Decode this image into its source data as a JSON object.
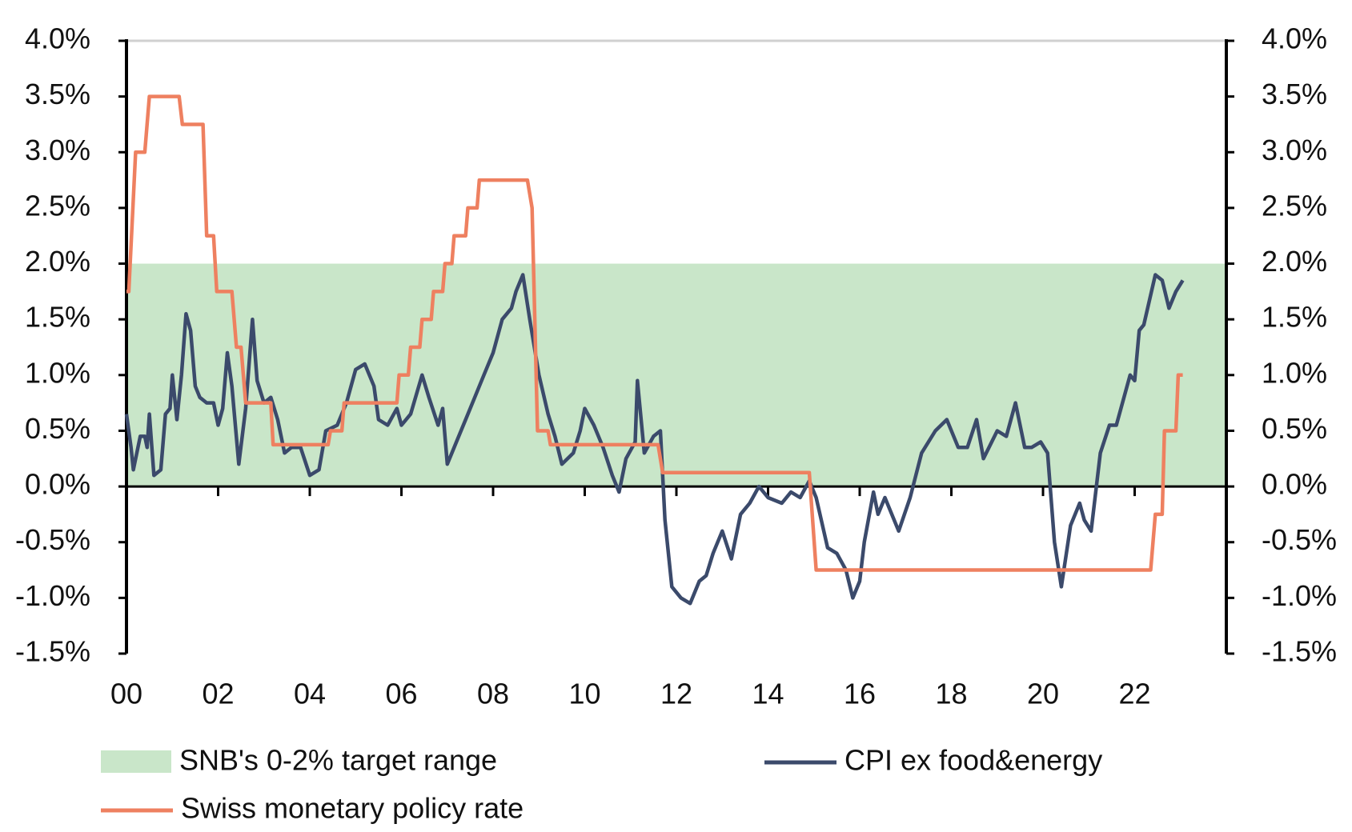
{
  "chart_data": {
    "type": "line",
    "band": {
      "name": "SNB's 0-2% target range",
      "color": "#c9e6c9",
      "range": [
        0,
        2
      ]
    },
    "series": [
      {
        "name": "CPI ex food&energy",
        "color": "#3b4a6b",
        "x": [
          0,
          0.1,
          0.15,
          0.3,
          0.4,
          0.45,
          0.5,
          0.6,
          0.75,
          0.85,
          0.95,
          1.0,
          1.1,
          1.2,
          1.3,
          1.4,
          1.5,
          1.6,
          1.75,
          1.9,
          2.0,
          2.1,
          2.2,
          2.3,
          2.45,
          2.6,
          2.75,
          2.85,
          3.0,
          3.15,
          3.3,
          3.45,
          3.6,
          3.8,
          4.0,
          4.2,
          4.35,
          4.6,
          4.8,
          5.0,
          5.2,
          5.4,
          5.5,
          5.7,
          5.9,
          6.0,
          6.2,
          6.45,
          6.6,
          6.8,
          6.9,
          7.0,
          7.2,
          7.4,
          7.6,
          7.8,
          8.0,
          8.2,
          8.4,
          8.5,
          8.65,
          8.8,
          9.0,
          9.2,
          9.35,
          9.5,
          9.75,
          9.9,
          10.0,
          10.2,
          10.4,
          10.6,
          10.75,
          10.9,
          11.1,
          11.15,
          11.3,
          11.5,
          11.65,
          11.75,
          11.9,
          12.1,
          12.3,
          12.5,
          12.65,
          12.8,
          13.0,
          13.2,
          13.4,
          13.6,
          13.8,
          14.0,
          14.3,
          14.5,
          14.7,
          14.9,
          15.05,
          15.3,
          15.5,
          15.7,
          15.85,
          16.0,
          16.1,
          16.3,
          16.4,
          16.55,
          16.85,
          17.1,
          17.35,
          17.65,
          17.9,
          18.15,
          18.35,
          18.55,
          18.7,
          19.0,
          19.2,
          19.4,
          19.6,
          19.75,
          19.95,
          20.1,
          20.25,
          20.4,
          20.6,
          20.8,
          20.9,
          21.05,
          21.25,
          21.45,
          21.6,
          21.9,
          22.0,
          22.1,
          22.2,
          22.45,
          22.6,
          22.75,
          22.9,
          23.05
        ],
        "values": [
          0.65,
          0.35,
          0.15,
          0.45,
          0.45,
          0.35,
          0.65,
          0.1,
          0.15,
          0.65,
          0.7,
          1.0,
          0.6,
          1.0,
          1.55,
          1.4,
          0.9,
          0.8,
          0.75,
          0.75,
          0.55,
          0.7,
          1.2,
          0.9,
          0.2,
          0.7,
          1.5,
          0.95,
          0.75,
          0.8,
          0.6,
          0.3,
          0.35,
          0.35,
          0.1,
          0.15,
          0.5,
          0.55,
          0.75,
          1.05,
          1.1,
          0.9,
          0.6,
          0.55,
          0.7,
          0.55,
          0.65,
          1.0,
          0.8,
          0.55,
          0.7,
          0.2,
          0.4,
          0.6,
          0.8,
          1.0,
          1.2,
          1.5,
          1.6,
          1.75,
          1.9,
          1.5,
          1.0,
          0.65,
          0.45,
          0.2,
          0.3,
          0.5,
          0.7,
          0.55,
          0.35,
          0.1,
          -0.05,
          0.25,
          0.4,
          0.95,
          0.3,
          0.45,
          0.5,
          -0.3,
          -0.9,
          -1.0,
          -1.05,
          -0.85,
          -0.8,
          -0.6,
          -0.4,
          -0.65,
          -0.25,
          -0.15,
          0.0,
          -0.1,
          -0.15,
          -0.05,
          -0.1,
          0.05,
          -0.1,
          -0.55,
          -0.6,
          -0.75,
          -1.0,
          -0.85,
          -0.5,
          -0.05,
          -0.25,
          -0.1,
          -0.4,
          -0.1,
          0.3,
          0.5,
          0.6,
          0.35,
          0.35,
          0.6,
          0.25,
          0.5,
          0.45,
          0.75,
          0.35,
          0.35,
          0.4,
          0.3,
          -0.5,
          -0.9,
          -0.35,
          -0.15,
          -0.3,
          -0.4,
          0.3,
          0.55,
          0.55,
          1.0,
          0.95,
          1.4,
          1.45,
          1.9,
          1.85,
          1.6,
          1.75,
          1.85
        ]
      },
      {
        "name": "Swiss monetary policy rate",
        "color": "#ee8060",
        "axis": "y2",
        "x": [
          0,
          0.05,
          0.2,
          0.4,
          0.5,
          1.15,
          1.22,
          1.67,
          1.75,
          1.9,
          1.97,
          2.3,
          2.4,
          2.5,
          2.6,
          3.15,
          3.2,
          4.4,
          4.45,
          4.7,
          4.75,
          5.9,
          5.95,
          6.15,
          6.2,
          6.4,
          6.45,
          6.65,
          6.7,
          6.9,
          6.95,
          7.1,
          7.15,
          7.4,
          7.45,
          7.65,
          7.7,
          8.75,
          8.85,
          8.97,
          9.2,
          9.25,
          11.6,
          11.7,
          14.9,
          15.05,
          22.35,
          22.45,
          22.6,
          22.65,
          22.9,
          22.95,
          23.05
        ],
        "values": [
          1.75,
          1.75,
          3.0,
          3.0,
          3.5,
          3.5,
          3.25,
          3.25,
          2.25,
          2.25,
          1.75,
          1.75,
          1.25,
          1.25,
          0.75,
          0.75,
          0.375,
          0.375,
          0.5,
          0.5,
          0.75,
          0.75,
          1.0,
          1.0,
          1.25,
          1.25,
          1.5,
          1.5,
          1.75,
          1.75,
          2.0,
          2.0,
          2.25,
          2.25,
          2.5,
          2.5,
          2.75,
          2.75,
          2.5,
          0.5,
          0.5,
          0.375,
          0.375,
          0.125,
          0.125,
          -0.75,
          -0.75,
          -0.25,
          -0.25,
          0.5,
          0.5,
          1.0,
          1.0
        ]
      }
    ],
    "xlim": [
      0,
      24
    ],
    "xticks": [
      {
        "value": 0,
        "label": "00"
      },
      {
        "value": 2,
        "label": "02"
      },
      {
        "value": 4,
        "label": "04"
      },
      {
        "value": 6,
        "label": "06"
      },
      {
        "value": 8,
        "label": "08"
      },
      {
        "value": 10,
        "label": "10"
      },
      {
        "value": 12,
        "label": "12"
      },
      {
        "value": 14,
        "label": "14"
      },
      {
        "value": 16,
        "label": "16"
      },
      {
        "value": 18,
        "label": "18"
      },
      {
        "value": 20,
        "label": "20"
      },
      {
        "value": 22,
        "label": "22"
      }
    ],
    "ylim": [
      -1.5,
      4
    ],
    "yticks": [
      {
        "value": -1.5,
        "label": "-1.5%"
      },
      {
        "value": -1,
        "label": "-1.0%"
      },
      {
        "value": -0.5,
        "label": "-0.5%"
      },
      {
        "value": 0,
        "label": "0.0%"
      },
      {
        "value": 0.5,
        "label": "0.5%"
      },
      {
        "value": 1,
        "label": "1.0%"
      },
      {
        "value": 1.5,
        "label": "1.5%"
      },
      {
        "value": 2,
        "label": "2.0%"
      },
      {
        "value": 2.5,
        "label": "2.5%"
      },
      {
        "value": 3,
        "label": "3.0%"
      },
      {
        "value": 3.5,
        "label": "3.5%"
      },
      {
        "value": 4,
        "label": "4.0%"
      }
    ],
    "y2lim": [
      -1.5,
      4
    ],
    "y2ticks": [
      {
        "value": -1.5,
        "label": "-1.5%"
      },
      {
        "value": -1,
        "label": "-1.0%"
      },
      {
        "value": -0.5,
        "label": "-0.5%"
      },
      {
        "value": 0,
        "label": "0.0%"
      },
      {
        "value": 0.5,
        "label": "0.5%"
      },
      {
        "value": 1,
        "label": "1.0%"
      },
      {
        "value": 1.5,
        "label": "1.5%"
      },
      {
        "value": 2,
        "label": "2.0%"
      },
      {
        "value": 2.5,
        "label": "2.5%"
      },
      {
        "value": 3,
        "label": "3.0%"
      },
      {
        "value": 3.5,
        "label": "3.5%"
      },
      {
        "value": 4,
        "label": "4.0%"
      }
    ]
  }
}
